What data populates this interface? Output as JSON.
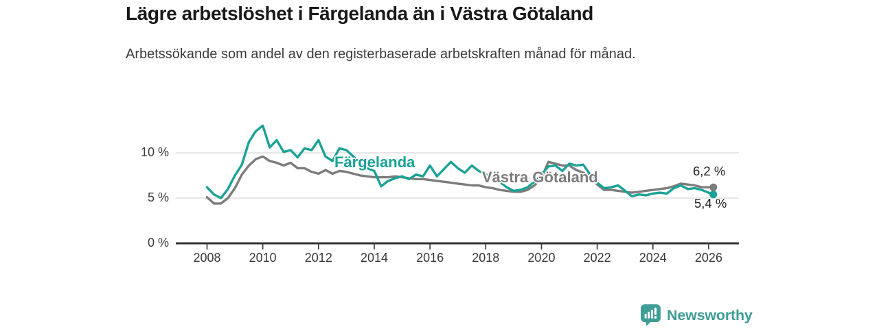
{
  "header": {
    "title": "Lägre arbetslöshet i Färgelanda än i Västra Götaland",
    "subtitle": "Arbetssökande som andel av den registerbaserade arbetskraften månad för månad."
  },
  "chart_data": {
    "type": "line",
    "title": "Lägre arbetslöshet i Färgelanda än i Västra Götaland",
    "subtitle": "Arbetssökande som andel av den registerbaserade arbetskraften månad för månad.",
    "unit": "%",
    "grid": "horizontal",
    "legend_position": "inline-labels",
    "grid_color": "#dedede",
    "axis_color": "#333333",
    "ylim": [
      0,
      13.5
    ],
    "xlim": [
      2006.9,
      2027.1
    ],
    "y_ticks": [
      {
        "value": 0,
        "label": "0 %"
      },
      {
        "value": 5,
        "label": "5 %"
      },
      {
        "value": 10,
        "label": "10 %"
      }
    ],
    "x_ticks": [
      2008,
      2010,
      2012,
      2014,
      2016,
      2018,
      2020,
      2022,
      2024,
      2026
    ],
    "x_tick_labels": [
      "2008",
      "2010",
      "2012",
      "2014",
      "2016",
      "2018",
      "2020",
      "2022",
      "2024",
      "2026"
    ],
    "x": [
      2008,
      2008.25,
      2008.5,
      2008.75,
      2009,
      2009.25,
      2009.5,
      2009.75,
      2010,
      2010.25,
      2010.5,
      2010.75,
      2011,
      2011.25,
      2011.5,
      2011.75,
      2012,
      2012.25,
      2012.5,
      2012.75,
      2013,
      2013.25,
      2013.5,
      2013.75,
      2014,
      2014.25,
      2014.5,
      2014.75,
      2015,
      2015.25,
      2015.5,
      2015.75,
      2016,
      2016.25,
      2016.5,
      2016.75,
      2017,
      2017.25,
      2017.5,
      2017.75,
      2018,
      2018.25,
      2018.5,
      2018.75,
      2019,
      2019.25,
      2019.5,
      2019.75,
      2020,
      2020.25,
      2020.5,
      2020.75,
      2021,
      2021.25,
      2021.5,
      2021.75,
      2022,
      2022.25,
      2022.5,
      2022.75,
      2023,
      2023.25,
      2023.5,
      2023.75,
      2024,
      2024.25,
      2024.5,
      2024.75,
      2025,
      2025.25,
      2025.5,
      2025.75,
      2026,
      2026.17
    ],
    "series": [
      {
        "name": "Färgelanda",
        "color": "#1AA296",
        "end_label": "5,4 %",
        "end_value": 5.4,
        "values": [
          6.2,
          5.4,
          5.0,
          6.0,
          7.5,
          8.7,
          11.2,
          12.4,
          13.0,
          10.6,
          11.4,
          10.1,
          10.3,
          9.5,
          10.5,
          10.3,
          11.4,
          9.6,
          9.1,
          10.5,
          10.3,
          9.6,
          8.8,
          8.3,
          8.0,
          6.3,
          6.9,
          7.2,
          7.4,
          7.1,
          7.6,
          7.4,
          8.6,
          7.4,
          8.2,
          9.0,
          8.3,
          7.8,
          8.6,
          8.0,
          7.6,
          7.4,
          6.8,
          6.2,
          5.8,
          5.9,
          6.2,
          6.8,
          7.6,
          8.5,
          8.6,
          8.0,
          8.8,
          8.6,
          8.7,
          7.6,
          6.7,
          6.1,
          6.2,
          6.4,
          5.8,
          5.2,
          5.4,
          5.3,
          5.5,
          5.6,
          5.5,
          6.1,
          6.4,
          6.0,
          6.1,
          5.9,
          5.6,
          5.4
        ]
      },
      {
        "name": "Västra Götaland",
        "color": "#7C7C7C",
        "end_label": "6,2 %",
        "end_value": 6.2,
        "values": [
          5.1,
          4.4,
          4.4,
          5.0,
          6.1,
          7.6,
          8.6,
          9.3,
          9.6,
          9.1,
          8.9,
          8.6,
          8.9,
          8.3,
          8.3,
          7.9,
          7.7,
          8.1,
          7.7,
          8.0,
          7.9,
          7.7,
          7.5,
          7.4,
          7.3,
          7.3,
          7.3,
          7.4,
          7.3,
          7.2,
          7.1,
          7.1,
          7.0,
          6.9,
          6.8,
          6.7,
          6.6,
          6.5,
          6.4,
          6.4,
          6.2,
          6.1,
          5.9,
          5.8,
          5.7,
          5.7,
          5.9,
          6.4,
          7.2,
          9.0,
          8.8,
          8.6,
          8.6,
          8.1,
          7.8,
          7.4,
          6.5,
          5.9,
          5.9,
          5.8,
          5.7,
          5.6,
          5.7,
          5.8,
          5.9,
          6.0,
          6.1,
          6.3,
          6.6,
          6.5,
          6.4,
          6.2,
          6.2,
          6.2
        ]
      }
    ]
  },
  "footer": {
    "brand": "Newsworthy",
    "brand_color": "#3F9D96",
    "icon": "newsworthy-chart-bubble-icon"
  }
}
